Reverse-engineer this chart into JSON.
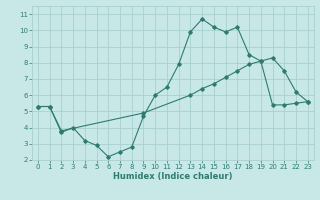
{
  "xlabel": "Humidex (Indice chaleur)",
  "bg_color": "#c8e8e8",
  "line_color": "#2e7b70",
  "grid_color": "#a8d0d0",
  "xlim": [
    -0.5,
    23.5
  ],
  "ylim": [
    2,
    11.5
  ],
  "xticks": [
    0,
    1,
    2,
    3,
    4,
    5,
    6,
    7,
    8,
    9,
    10,
    11,
    12,
    13,
    14,
    15,
    16,
    17,
    18,
    19,
    20,
    21,
    22,
    23
  ],
  "yticks": [
    2,
    3,
    4,
    5,
    6,
    7,
    8,
    9,
    10,
    11
  ],
  "series1_x": [
    0,
    1,
    2,
    3,
    4,
    5,
    6,
    7,
    8,
    9,
    10,
    11,
    12,
    13,
    14,
    15,
    16,
    17,
    18,
    19,
    20,
    21,
    22,
    23
  ],
  "series1_y": [
    5.3,
    5.3,
    3.7,
    4.0,
    3.2,
    2.9,
    2.2,
    2.5,
    2.8,
    4.7,
    6.0,
    6.5,
    7.9,
    9.9,
    10.7,
    10.2,
    9.9,
    10.2,
    8.5,
    8.1,
    8.3,
    7.5,
    6.2,
    5.6
  ],
  "series2_x": [
    0,
    1,
    2,
    9,
    13,
    14,
    15,
    16,
    17,
    18,
    19,
    20,
    21,
    22,
    23
  ],
  "series2_y": [
    5.3,
    5.3,
    3.8,
    4.9,
    6.0,
    6.4,
    6.7,
    7.1,
    7.5,
    7.9,
    8.1,
    5.4,
    5.4,
    5.5,
    5.6
  ]
}
